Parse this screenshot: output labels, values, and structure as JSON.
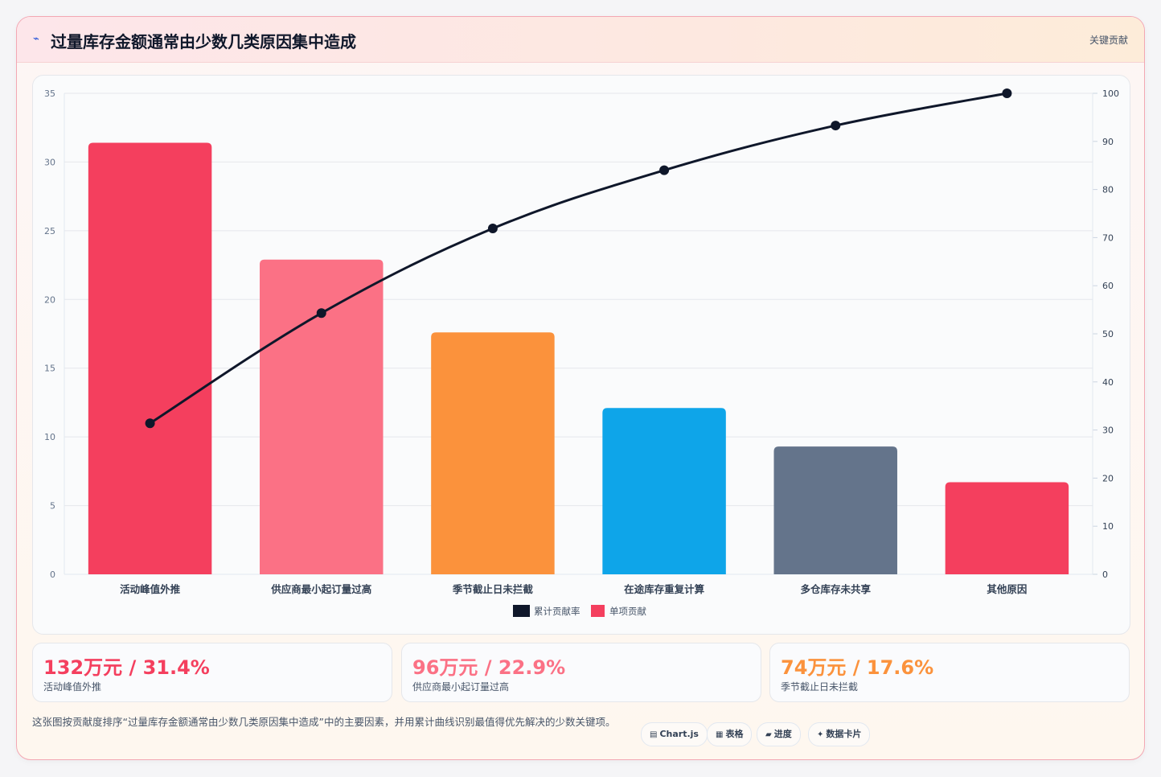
{
  "header": {
    "icon": "trend-icon",
    "title": "过量库存金额通常由少数几类原因集中造成",
    "tag": "关键贡献"
  },
  "chart_data": {
    "type": "bar",
    "categories": [
      "活动峰值外推",
      "供应商最小起订量过高",
      "季节截止日未拦截",
      "在途库存重复计算",
      "多仓库存未共享",
      "其他原因"
    ],
    "series": [
      {
        "name": "单项贡献",
        "type": "bar",
        "axis": "left",
        "values": [
          31.4,
          22.9,
          17.6,
          12.1,
          9.3,
          6.7
        ]
      },
      {
        "name": "累计贡献率",
        "type": "line",
        "axis": "right",
        "values": [
          31.4,
          54.3,
          71.9,
          84.0,
          93.3,
          100
        ]
      }
    ],
    "bar_colors": [
      "#f43f5e",
      "#fb7185",
      "#fb923c",
      "#0ea5e9",
      "#64748b",
      "#f43f5e"
    ],
    "line_color": "#0f172a",
    "ylim_left": [
      0,
      35
    ],
    "yticks_left": [
      0,
      5,
      10,
      15,
      20,
      25,
      30,
      35
    ],
    "ylim_right": [
      0,
      100
    ],
    "yticks_right": [
      0,
      10,
      20,
      30,
      40,
      50,
      60,
      70,
      80,
      90,
      100
    ],
    "grid": true,
    "legend": {
      "placement": "bottom",
      "entries": [
        "累计贡献率",
        "单项贡献"
      ]
    }
  },
  "stats": [
    {
      "value": "132万元 / 31.4%",
      "label": "活动峰值外推",
      "color": "#f43f5e"
    },
    {
      "value": "96万元 / 22.9%",
      "label": "供应商最小起订量过高",
      "color": "#fb7185"
    },
    {
      "value": "74万元 / 17.6%",
      "label": "季节截止日未拦截",
      "color": "#fb923c"
    }
  ],
  "description": "这张图按贡献度排序“过量库存金额通常由少数几类原因集中造成”中的主要因素，并用累计曲线识别最值得优先解决的少数关键项。",
  "chips": [
    {
      "icon": "chart-icon",
      "glyph": "▤",
      "label": "Chart.js"
    },
    {
      "icon": "table-icon",
      "glyph": "▦",
      "label": "表格"
    },
    {
      "icon": "progress-icon",
      "glyph": "▰",
      "label": "进度"
    },
    {
      "icon": "sparkle-icon",
      "glyph": "✦",
      "label": "数据卡片"
    }
  ]
}
